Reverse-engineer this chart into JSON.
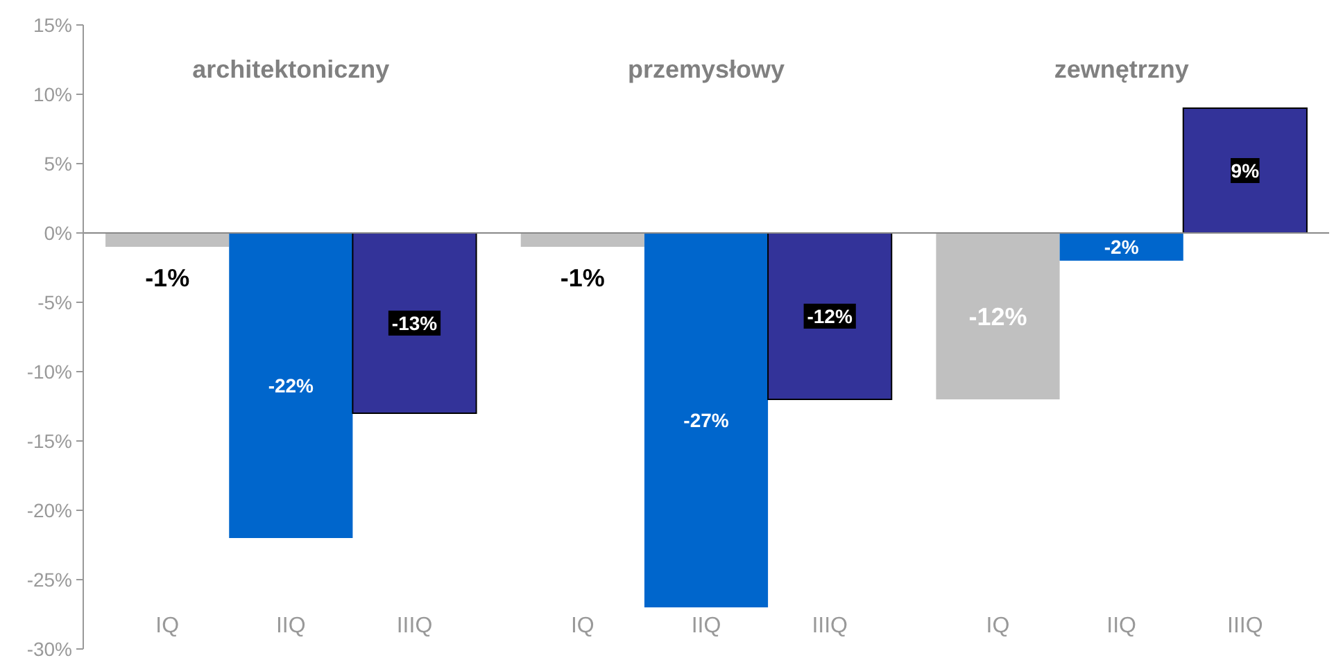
{
  "chart_data": {
    "type": "bar",
    "categories": [
      "IQ",
      "IIQ",
      "IIIQ",
      "IQ",
      "IIQ",
      "IIIQ",
      "IQ",
      "IIQ",
      "IIIQ"
    ],
    "values": [
      -1,
      -22,
      -13,
      -1,
      -27,
      -12,
      -12,
      -2,
      9
    ],
    "colors": [
      "#c0c0c0",
      "#0066cc",
      "#333399",
      "#c0c0c0",
      "#0066cc",
      "#333399",
      "#c0c0c0",
      "#0066cc",
      "#333399"
    ],
    "value_labels": [
      "-1%",
      "-22%",
      "-13%",
      "-1%",
      "-27%",
      "-12%",
      "-12%",
      "-2%",
      "9%"
    ],
    "annotations": [
      "architektoniczny",
      "przemysłowy",
      "zewnętrzny"
    ],
    "ylim": [
      -30,
      15
    ],
    "yticks": [
      {
        "value": -30,
        "label": "-30%"
      },
      {
        "value": -25,
        "label": "-25%"
      },
      {
        "value": -20,
        "label": "-20%"
      },
      {
        "value": -15,
        "label": "-15%"
      },
      {
        "value": -10,
        "label": "-10%"
      },
      {
        "value": -5,
        "label": "-5%"
      },
      {
        "value": 0,
        "label": "0%"
      },
      {
        "value": 5,
        "label": "5%"
      },
      {
        "value": 10,
        "label": "10%"
      },
      {
        "value": 15,
        "label": "15%"
      }
    ],
    "orientation": "vertical"
  }
}
